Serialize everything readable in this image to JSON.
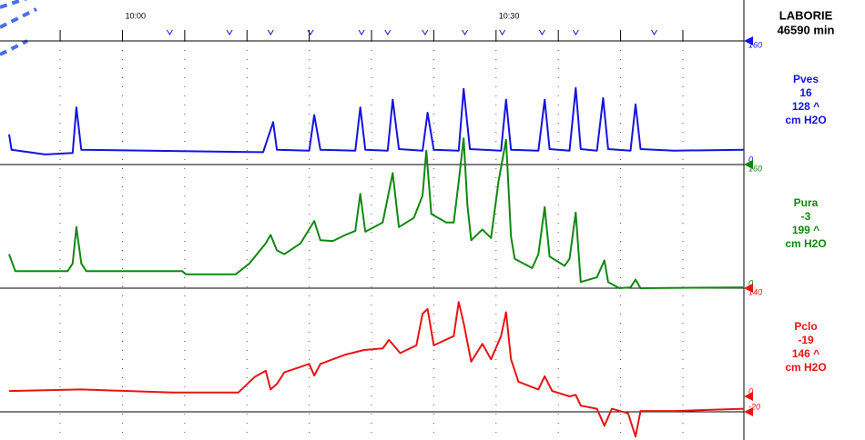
{
  "header": {
    "brand": "LABORIE",
    "duration": "46590 min"
  },
  "time_axis": {
    "xlim": [
      -9.1,
      49.9
    ],
    "xticks": [
      {
        "value": -5,
        "label": null
      },
      {
        "value": 0,
        "label": "10:00"
      },
      {
        "value": 5,
        "label": null
      },
      {
        "value": 10,
        "label": null
      },
      {
        "value": 15,
        "label": null
      },
      {
        "value": 20,
        "label": null
      },
      {
        "value": 25,
        "label": null
      },
      {
        "value": 30,
        "label": "10:30"
      },
      {
        "value": 35,
        "label": null
      },
      {
        "value": 40,
        "label": null
      },
      {
        "value": 45,
        "label": null
      }
    ],
    "events": [
      3.8,
      8.6,
      11.9,
      15.1,
      19.2,
      21.3,
      24.3,
      27.5,
      30.5,
      33.7,
      36.4,
      42.7
    ]
  },
  "chart_data": [
    {
      "type": "line",
      "name": "Pves",
      "current": 16,
      "max_label": "128 ^",
      "unit": "cm H2O",
      "color": "#1414e0",
      "ylim": [
        0,
        160
      ],
      "yticks": [
        0,
        160
      ],
      "x": [
        -9.1,
        -8.9,
        -6.2,
        -4.0,
        -3.7,
        -3.3,
        11.3,
        12.1,
        12.4,
        15.0,
        15.4,
        15.9,
        18.7,
        19.1,
        19.5,
        21.3,
        21.7,
        22.2,
        24.1,
        24.5,
        25.0,
        27.0,
        27.4,
        27.9,
        30.4,
        30.8,
        31.2,
        33.4,
        33.9,
        34.3,
        35.9,
        36.4,
        36.8,
        38.1,
        38.6,
        39.0,
        40.8,
        41.2,
        41.6,
        44.3,
        49.9
      ],
      "values": [
        39,
        19,
        13,
        15,
        74,
        19,
        16,
        55,
        19,
        18,
        64,
        19,
        18,
        74,
        19,
        18,
        84,
        20,
        18,
        67,
        19,
        18,
        98,
        20,
        18,
        84,
        19,
        18,
        84,
        20,
        18,
        99,
        20,
        18,
        86,
        20,
        18,
        78,
        20,
        18,
        19
      ]
    },
    {
      "type": "line",
      "name": "Pura",
      "current": -3,
      "max_label": "199 ^",
      "unit": "cm H2O",
      "color": "#118811",
      "ylim": [
        0,
        160
      ],
      "yticks": [
        0,
        160
      ],
      "x": [
        -9.1,
        -8.6,
        -4.4,
        -4.0,
        -3.7,
        -3.3,
        -2.9,
        4.8,
        5.1,
        9.1,
        10.2,
        11.5,
        11.9,
        12.4,
        13.0,
        14.3,
        15.4,
        15.9,
        16.9,
        17.9,
        18.7,
        19.1,
        19.5,
        20.9,
        21.7,
        22.2,
        23.4,
        24.1,
        24.4,
        24.8,
        26.0,
        26.6,
        27.0,
        27.4,
        27.7,
        28.0,
        28.9,
        29.6,
        30.2,
        30.8,
        31.2,
        31.5,
        32.9,
        33.4,
        33.9,
        34.3,
        35.5,
        35.9,
        36.4,
        36.8,
        38.1,
        38.7,
        39.0,
        39.9,
        40.8,
        41.2,
        41.6,
        49.9
      ],
      "values": [
        44,
        22,
        22,
        32,
        79,
        32,
        22,
        22,
        18,
        18,
        32,
        58,
        69,
        49,
        44,
        58,
        87,
        62,
        61,
        69,
        74,
        122,
        73,
        85,
        149,
        79,
        91,
        120,
        178,
        96,
        85,
        85,
        138,
        194,
        108,
        62,
        76,
        65,
        138,
        192,
        67,
        38,
        26,
        44,
        105,
        41,
        29,
        38,
        98,
        8,
        14,
        36,
        8,
        0,
        1,
        11,
        0,
        1
      ]
    },
    {
      "type": "line",
      "name": "Pclo",
      "current": -19,
      "max_label": "146 ^",
      "unit": "cm H2O",
      "color": "#e81414",
      "ylim": [
        -20,
        140
      ],
      "yticks": [
        -20,
        0,
        140
      ],
      "x": [
        -9.1,
        -3.3,
        4.0,
        9.3,
        10.6,
        11.5,
        11.9,
        12.4,
        13.0,
        15.0,
        15.4,
        15.9,
        17.9,
        19.4,
        20.9,
        21.4,
        22.3,
        23.6,
        24.1,
        24.5,
        25.0,
        26.6,
        27.0,
        27.4,
        28.0,
        28.9,
        29.6,
        30.4,
        30.8,
        31.2,
        31.8,
        33.4,
        33.9,
        34.5,
        35.9,
        36.4,
        36.8,
        38.1,
        38.7,
        39.3,
        40.6,
        41.2,
        41.6,
        44.3,
        49.9
      ],
      "values": [
        7,
        9,
        5,
        5,
        25,
        33,
        9,
        16,
        31,
        42,
        27,
        42,
        54,
        60,
        62,
        73,
        56,
        66,
        107,
        113,
        66,
        78,
        122,
        95,
        45,
        68,
        48,
        78,
        109,
        48,
        19,
        9,
        26,
        7,
        0,
        2,
        -12,
        -16,
        -38,
        -16,
        -22,
        -52,
        -19,
        -19,
        -16
      ]
    }
  ]
}
